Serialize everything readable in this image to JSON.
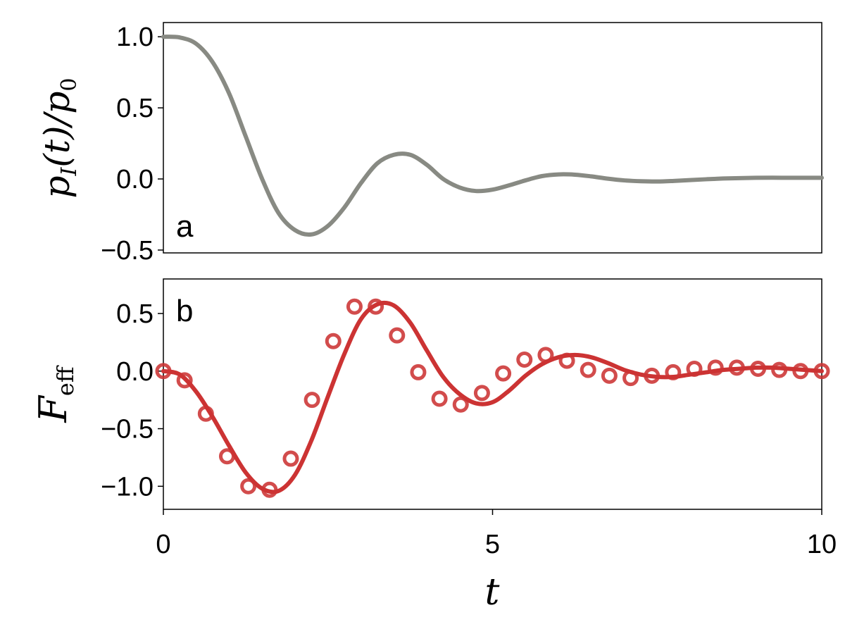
{
  "chart_data": [
    {
      "panel_label": "a",
      "type": "line",
      "ylabel_parts": {
        "var": "p",
        "sub": "I",
        "mid": "(t)/",
        "var2": "p",
        "sub2": "0"
      },
      "xlim": [
        0,
        10
      ],
      "ylim": [
        -0.52,
        1.1
      ],
      "yticks": [
        -0.5,
        0.0,
        0.5,
        1.0
      ],
      "yticklabels": [
        "−0.5",
        "0.0",
        "0.5",
        "1.0"
      ],
      "grid": false,
      "color": "#888a83",
      "series": [
        {
          "x": [
            0,
            0.25,
            0.5,
            0.75,
            1.0,
            1.25,
            1.5,
            1.75,
            2.0,
            2.25,
            2.5,
            2.75,
            3.0,
            3.25,
            3.5,
            3.75,
            4.0,
            4.25,
            4.5,
            4.75,
            5.0,
            5.25,
            5.5,
            5.75,
            6.0,
            6.25,
            6.5,
            6.75,
            7.0,
            7.25,
            7.5,
            7.75,
            8.0,
            8.25,
            8.5,
            8.75,
            9.0,
            9.25,
            9.5,
            9.75,
            10.0
          ],
          "values": [
            1.0,
            0.995,
            0.95,
            0.82,
            0.6,
            0.3,
            0.0,
            -0.24,
            -0.36,
            -0.39,
            -0.33,
            -0.2,
            -0.03,
            0.11,
            0.17,
            0.17,
            0.1,
            0.0,
            -0.06,
            -0.085,
            -0.075,
            -0.045,
            -0.01,
            0.02,
            0.032,
            0.03,
            0.018,
            0.002,
            -0.01,
            -0.016,
            -0.018,
            -0.014,
            -0.008,
            -0.002,
            0.003,
            0.006,
            0.008,
            0.009,
            0.008,
            0.008,
            0.008
          ]
        }
      ]
    },
    {
      "panel_label": "b",
      "type": "line",
      "ylabel_parts": {
        "var": "F",
        "sub": "eff"
      },
      "xlabel": "t",
      "xlim": [
        0,
        10
      ],
      "ylim": [
        -1.2,
        0.8
      ],
      "xticks": [
        0,
        5,
        10
      ],
      "xticklabels": [
        "0",
        "5",
        "10"
      ],
      "yticks": [
        -1.0,
        -0.5,
        0.0,
        0.5
      ],
      "yticklabels": [
        "−1.0",
        "−0.5",
        "0.0",
        "0.5"
      ],
      "grid": false,
      "color": "#cc3333",
      "series": [
        {
          "x": [
            0,
            0.25,
            0.5,
            0.75,
            1.0,
            1.25,
            1.5,
            1.75,
            2.0,
            2.25,
            2.5,
            2.75,
            3.0,
            3.25,
            3.5,
            3.75,
            4.0,
            4.25,
            4.5,
            4.75,
            5.0,
            5.25,
            5.5,
            5.75,
            6.0,
            6.25,
            6.5,
            6.75,
            7.0,
            7.25,
            7.5,
            7.75,
            8.0,
            8.25,
            8.5,
            8.75,
            9.0,
            9.25,
            9.5,
            9.75,
            10.0
          ],
          "values": [
            0.0,
            -0.03,
            -0.18,
            -0.4,
            -0.65,
            -0.88,
            -1.02,
            -1.04,
            -0.9,
            -0.6,
            -0.22,
            0.15,
            0.45,
            0.58,
            0.57,
            0.42,
            0.18,
            -0.05,
            -0.2,
            -0.28,
            -0.27,
            -0.17,
            -0.04,
            0.06,
            0.12,
            0.14,
            0.12,
            0.07,
            0.01,
            -0.03,
            -0.05,
            -0.05,
            -0.03,
            -0.01,
            0.01,
            0.02,
            0.03,
            0.03,
            0.02,
            0.01,
            0.0
          ]
        },
        {
          "marker": "open-circle",
          "x": [
            0.0,
            0.3226,
            0.6452,
            0.9677,
            1.2903,
            1.6129,
            1.9355,
            2.2581,
            2.5806,
            2.9032,
            3.2258,
            3.5484,
            3.871,
            4.1935,
            4.5161,
            4.8387,
            5.1613,
            5.4839,
            5.8065,
            6.129,
            6.4516,
            6.7742,
            7.0968,
            7.4194,
            7.7419,
            8.0645,
            8.3871,
            8.7097,
            9.0323,
            9.3548,
            9.6774,
            10.0
          ],
          "values": [
            0.0,
            -0.08,
            -0.37,
            -0.74,
            -1.0,
            -1.03,
            -0.76,
            -0.25,
            0.26,
            0.56,
            0.56,
            0.31,
            -0.01,
            -0.24,
            -0.29,
            -0.19,
            -0.02,
            0.1,
            0.14,
            0.09,
            0.01,
            -0.04,
            -0.06,
            -0.04,
            -0.01,
            0.02,
            0.03,
            0.03,
            0.02,
            0.01,
            0.0,
            0.0
          ]
        }
      ]
    }
  ]
}
